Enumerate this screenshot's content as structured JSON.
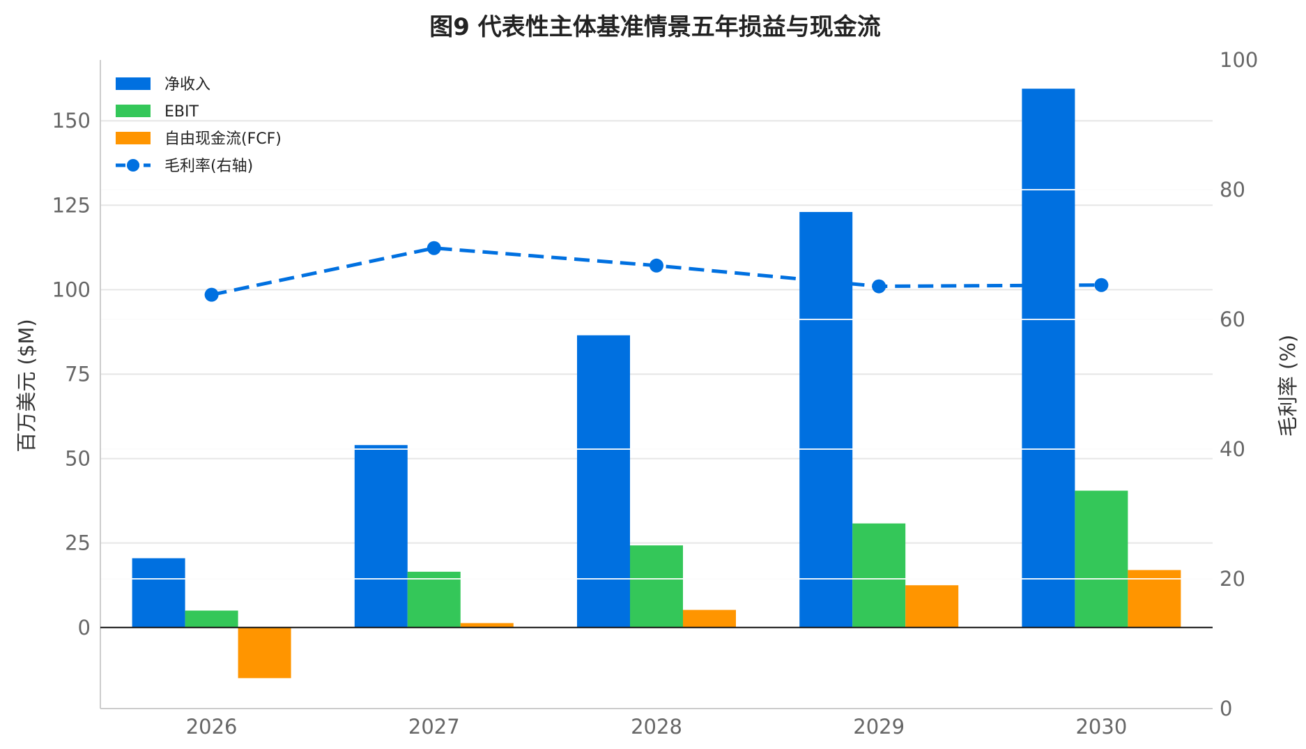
{
  "chart_data": {
    "type": "bar",
    "title": "图9 代表性主体基准情景五年损益与现金流",
    "categories": [
      "2026",
      "2027",
      "2028",
      "2029",
      "2030"
    ],
    "series": [
      {
        "name": "净收入",
        "type": "bar",
        "axis": "left",
        "color": "#0070E0",
        "values": [
          20.5,
          54,
          86.5,
          123,
          159.5
        ]
      },
      {
        "name": "EBIT",
        "type": "bar",
        "axis": "left",
        "color": "#34C759",
        "values": [
          5,
          16.5,
          24.3,
          30.8,
          40.5
        ]
      },
      {
        "name": "自由现金流(FCF)",
        "type": "bar",
        "axis": "left",
        "color": "#FF9500",
        "values": [
          -15,
          1.3,
          5.2,
          12.5,
          17
        ]
      },
      {
        "name": "毛利率(右轴)",
        "type": "line",
        "axis": "right",
        "color": "#0070E0",
        "style": "dashed",
        "marker": "circle",
        "values": [
          63.8,
          71,
          68.3,
          65.1,
          65.3
        ]
      }
    ],
    "ylabel": "百万美元 ($M)",
    "y2label": "毛利率 (%)",
    "ylim": [
      -24,
      168
    ],
    "y2lim": [
      0,
      100
    ],
    "yticks": [
      0,
      25,
      50,
      75,
      100,
      125,
      150
    ],
    "y2ticks": [
      0,
      20,
      40,
      60,
      80,
      100
    ],
    "grid": true,
    "legend_position": "top-left"
  }
}
